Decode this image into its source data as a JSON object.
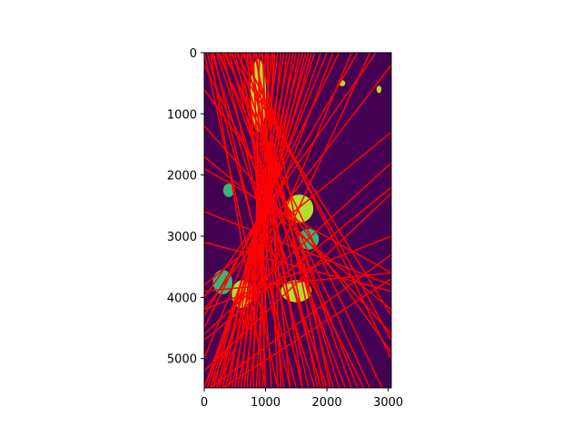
{
  "chart_data": {
    "type": "heatmap",
    "title": "",
    "xlabel": "",
    "ylabel": "",
    "xlim": [
      0,
      3050
    ],
    "ylim": [
      5480,
      0
    ],
    "x_ticks": [
      0,
      1000,
      2000,
      3000
    ],
    "x_tick_labels": [
      "0",
      "1000",
      "2000",
      "3000"
    ],
    "y_ticks": [
      0,
      1000,
      2000,
      3000,
      4000,
      5000
    ],
    "y_tick_labels": [
      "0",
      "1000",
      "2000",
      "3000",
      "4000",
      "5000"
    ],
    "grid": false,
    "image": {
      "colormap": "viridis",
      "background_color": "#440154",
      "foreground_color": "#b5de2b",
      "mid_color": "#35b779",
      "blobs": [
        {
          "cx": 880,
          "cy": 700,
          "rx": 130,
          "ry": 600
        },
        {
          "cx": 1550,
          "cy": 2550,
          "rx": 230,
          "ry": 230
        },
        {
          "cx": 1700,
          "cy": 3050,
          "rx": 170,
          "ry": 170
        },
        {
          "cx": 1500,
          "cy": 3900,
          "rx": 250,
          "ry": 180
        },
        {
          "cx": 620,
          "cy": 3950,
          "rx": 170,
          "ry": 230
        },
        {
          "cx": 300,
          "cy": 3750,
          "rx": 160,
          "ry": 200
        },
        {
          "cx": 2850,
          "cy": 600,
          "rx": 40,
          "ry": 60
        },
        {
          "cx": 2250,
          "cy": 500,
          "rx": 50,
          "ry": 50
        },
        {
          "cx": 400,
          "cy": 2250,
          "rx": 90,
          "ry": 110
        }
      ]
    },
    "line_color": "#ff0000",
    "lines": [
      [
        [
          0,
          0
        ],
        [
          1200,
          5480
        ]
      ],
      [
        [
          50,
          0
        ],
        [
          1500,
          5480
        ]
      ],
      [
        [
          120,
          0
        ],
        [
          1800,
          5480
        ]
      ],
      [
        [
          200,
          0
        ],
        [
          2000,
          5480
        ]
      ],
      [
        [
          300,
          0
        ],
        [
          1600,
          5480
        ]
      ],
      [
        [
          400,
          0
        ],
        [
          1900,
          5480
        ]
      ],
      [
        [
          500,
          0
        ],
        [
          1700,
          5480
        ]
      ],
      [
        [
          600,
          0
        ],
        [
          1300,
          5480
        ]
      ],
      [
        [
          700,
          0
        ],
        [
          1100,
          5480
        ]
      ],
      [
        [
          800,
          0
        ],
        [
          1000,
          5480
        ]
      ],
      [
        [
          900,
          0
        ],
        [
          800,
          5480
        ]
      ],
      [
        [
          1000,
          0
        ],
        [
          700,
          5480
        ]
      ],
      [
        [
          1100,
          0
        ],
        [
          600,
          5480
        ]
      ],
      [
        [
          1200,
          0
        ],
        [
          500,
          5480
        ]
      ],
      [
        [
          1300,
          0
        ],
        [
          400,
          5480
        ]
      ],
      [
        [
          1400,
          0
        ],
        [
          300,
          5480
        ]
      ],
      [
        [
          1500,
          0
        ],
        [
          250,
          5480
        ]
      ],
      [
        [
          1600,
          0
        ],
        [
          150,
          5480
        ]
      ],
      [
        [
          1700,
          0
        ],
        [
          100,
          5480
        ]
      ],
      [
        [
          1800,
          0
        ],
        [
          50,
          5480
        ]
      ],
      [
        [
          2000,
          0
        ],
        [
          0,
          5000
        ]
      ],
      [
        [
          2200,
          0
        ],
        [
          0,
          4500
        ]
      ],
      [
        [
          2500,
          0
        ],
        [
          0,
          4300
        ]
      ],
      [
        [
          2800,
          0
        ],
        [
          0,
          4000
        ]
      ],
      [
        [
          3050,
          200
        ],
        [
          0,
          4200
        ]
      ],
      [
        [
          3050,
          1300
        ],
        [
          0,
          3800
        ]
      ],
      [
        [
          3050,
          1800
        ],
        [
          0,
          4600
        ]
      ],
      [
        [
          3050,
          2300
        ],
        [
          0,
          5200
        ]
      ],
      [
        [
          3050,
          3300
        ],
        [
          100,
          5480
        ]
      ],
      [
        [
          3050,
          3700
        ],
        [
          300,
          5480
        ]
      ],
      [
        [
          0,
          200
        ],
        [
          2600,
          5480
        ]
      ],
      [
        [
          0,
          600
        ],
        [
          3050,
          4900
        ]
      ],
      [
        [
          0,
          1200
        ],
        [
          3050,
          4600
        ]
      ],
      [
        [
          0,
          1700
        ],
        [
          3050,
          4200
        ]
      ],
      [
        [
          0,
          1900
        ],
        [
          3050,
          3600
        ]
      ],
      [
        [
          0,
          2600
        ],
        [
          3050,
          3800
        ]
      ],
      [
        [
          0,
          3900
        ],
        [
          3050,
          3600
        ]
      ],
      [
        [
          0,
          3100
        ],
        [
          3050,
          3900
        ]
      ],
      [
        [
          0,
          4200
        ],
        [
          3050,
          3000
        ]
      ],
      [
        [
          0,
          4700
        ],
        [
          3050,
          2200
        ]
      ],
      [
        [
          250,
          0
        ],
        [
          2300,
          5480
        ]
      ],
      [
        [
          350,
          0
        ],
        [
          2500,
          5480
        ]
      ],
      [
        [
          450,
          0
        ],
        [
          2400,
          5480
        ]
      ],
      [
        [
          550,
          0
        ],
        [
          2200,
          5480
        ]
      ],
      [
        [
          650,
          0
        ],
        [
          2100,
          5480
        ]
      ],
      [
        [
          750,
          0
        ],
        [
          1600,
          5480
        ]
      ],
      [
        [
          850,
          0
        ],
        [
          1400,
          5480
        ]
      ],
      [
        [
          950,
          0
        ],
        [
          1200,
          5480
        ]
      ],
      [
        [
          1050,
          0
        ],
        [
          900,
          5480
        ]
      ],
      [
        [
          1150,
          0
        ],
        [
          850,
          5480
        ]
      ],
      [
        [
          1250,
          0
        ],
        [
          750,
          5480
        ]
      ],
      [
        [
          1350,
          0
        ],
        [
          650,
          5480
        ]
      ],
      [
        [
          1450,
          0
        ],
        [
          550,
          5480
        ]
      ],
      [
        [
          1550,
          0
        ],
        [
          450,
          5480
        ]
      ],
      [
        [
          1650,
          0
        ],
        [
          350,
          5480
        ]
      ],
      [
        [
          1750,
          0
        ],
        [
          200,
          5480
        ]
      ],
      [
        [
          1900,
          0
        ],
        [
          0,
          5480
        ]
      ],
      [
        [
          2100,
          0
        ],
        [
          0,
          5480
        ]
      ],
      [
        [
          2400,
          0
        ],
        [
          100,
          5480
        ]
      ],
      [
        [
          2700,
          0
        ],
        [
          200,
          5480
        ]
      ],
      [
        [
          100,
          0
        ],
        [
          1000,
          5480
        ]
      ],
      [
        [
          150,
          0
        ],
        [
          1400,
          5480
        ]
      ],
      [
        [
          220,
          0
        ],
        [
          2700,
          5480
        ]
      ],
      [
        [
          320,
          0
        ],
        [
          2900,
          5480
        ]
      ],
      [
        [
          420,
          0
        ],
        [
          3050,
          4300
        ]
      ],
      [
        [
          520,
          0
        ],
        [
          3050,
          4700
        ]
      ],
      [
        [
          620,
          0
        ],
        [
          3050,
          5000
        ]
      ],
      [
        [
          720,
          0
        ],
        [
          1850,
          5480
        ]
      ],
      [
        [
          820,
          0
        ],
        [
          1950,
          5480
        ]
      ],
      [
        [
          920,
          0
        ],
        [
          2050,
          5480
        ]
      ],
      [
        [
          1020,
          0
        ],
        [
          1250,
          5480
        ]
      ],
      [
        [
          1120,
          0
        ],
        [
          950,
          5480
        ]
      ]
    ]
  }
}
